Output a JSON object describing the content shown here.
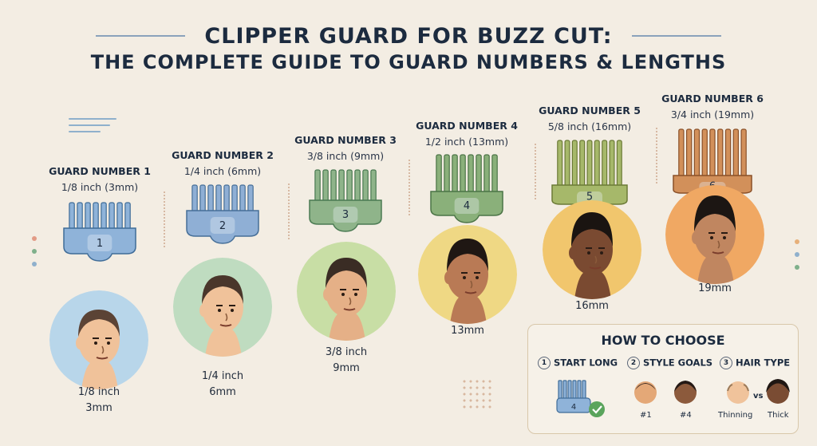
{
  "title_line1": "CLIPPER GUARD FOR BUZZ CUT:",
  "title_line2": "THE COMPLETE GUIDE TO GUARD NUMBERS & LENGTHS",
  "guards": [
    {
      "name": "GUARD NUMBER 1",
      "size": "1/8 inch (3mm)",
      "number": "1",
      "label_line1": "1/8 inch",
      "label_line2": "3mm",
      "color": "#8fb3d9",
      "dark": "#3f6c98",
      "bg": "#b8d6ea"
    },
    {
      "name": "GUARD NUMBER 2",
      "size": "1/4 inch (6mm)",
      "number": "2",
      "label_line1": "1/4 inch",
      "label_line2": "6mm",
      "color": "#8fafd5",
      "dark": "#466f98",
      "bg": "#bfdcc0"
    },
    {
      "name": "GUARD NUMBER 3",
      "size": "3/8 inch (9mm)",
      "number": "3",
      "label_line1": "3/8 inch",
      "label_line2": "9mm",
      "color": "#8fb48a",
      "dark": "#4a7a52",
      "bg": "#c8dea5"
    },
    {
      "name": "GUARD NUMBER 4",
      "size": "1/2 inch (13mm)",
      "number": "4",
      "label_line1": "13mm",
      "label_line2": "",
      "color": "#8ab07a",
      "dark": "#4b7446",
      "bg": "#efd884"
    },
    {
      "name": "GUARD NUMBER 5",
      "size": "5/8 inch (16mm)",
      "number": "5",
      "label_line1": "16mm",
      "label_line2": "",
      "color": "#a6b86a",
      "dark": "#6b7a36",
      "bg": "#f1c66d"
    },
    {
      "name": "GUARD NUMBER 6",
      "size": "3/4 inch (19mm)",
      "number": "6",
      "label_line1": "19mm",
      "label_line2": "",
      "color": "#d2905a",
      "dark": "#8a5028",
      "bg": "#f0a863"
    }
  ],
  "how_to_choose": {
    "title": "HOW TO CHOOSE",
    "steps": [
      {
        "num": "1",
        "label": "START LONG"
      },
      {
        "num": "2",
        "label": "STYLE GOALS"
      },
      {
        "num": "3",
        "label": "HAIR TYPE"
      }
    ],
    "guard_number": "4",
    "style_labels": [
      "#1",
      "#4"
    ],
    "hair_labels": [
      "Thinning",
      "Thick"
    ],
    "vs": "vs"
  }
}
